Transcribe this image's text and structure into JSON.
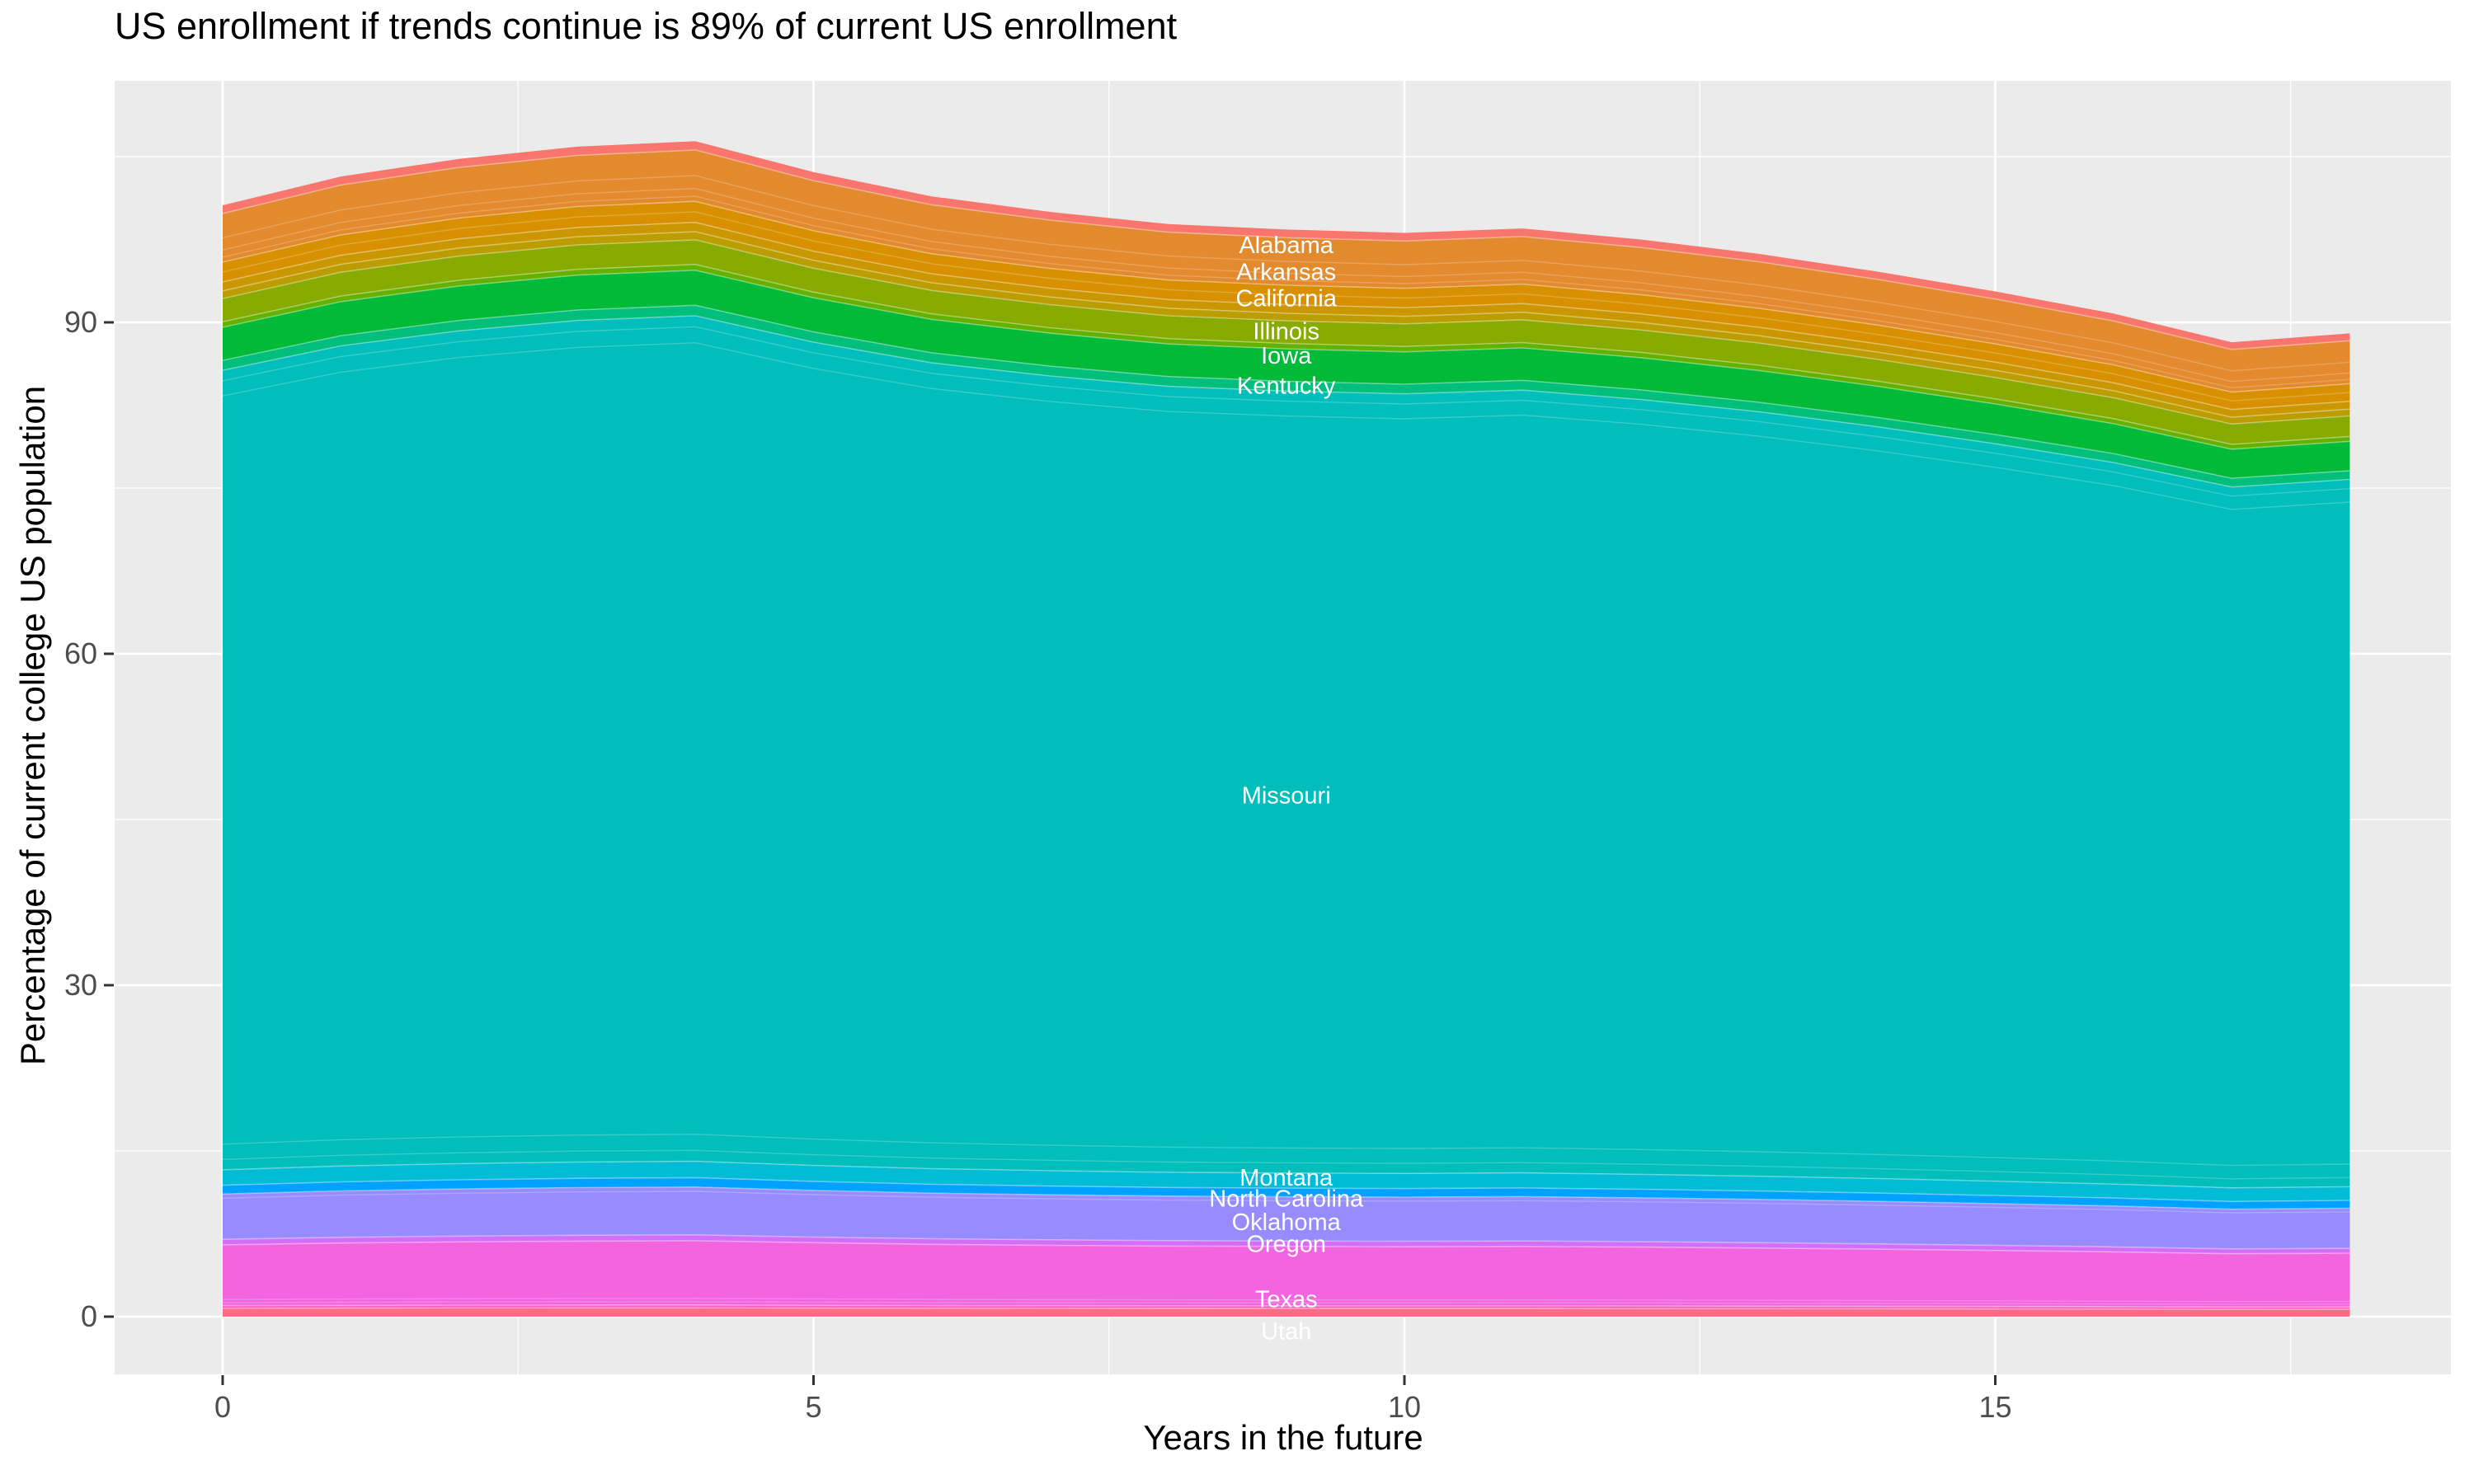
{
  "title": "US enrollment if trends continue is 89% of current US enrollment",
  "chart_data": {
    "type": "area",
    "stacked": true,
    "title": "US enrollment if trends continue is 89% of current US enrollment",
    "xlabel": "Years in the future",
    "ylabel": "Percentage of current college US population",
    "x": [
      0,
      1,
      2,
      3,
      4,
      5,
      6,
      7,
      8,
      9,
      10,
      11,
      12,
      13,
      14,
      15,
      16,
      17,
      18
    ],
    "totals": [
      100.6,
      103.2,
      104.8,
      105.9,
      106.4,
      103.6,
      101.4,
      100.0,
      98.9,
      98.4,
      98.1,
      98.5,
      97.5,
      96.2,
      94.6,
      92.8,
      90.8,
      88.2,
      89.0
    ],
    "series": [
      {
        "name": "Alabama",
        "color": "#F8766D",
        "width": 0.75
      },
      {
        "name": "",
        "color": "#E28A2D",
        "width": 4.4
      },
      {
        "name": "Arkansas",
        "color": "#D89000",
        "width": 1.8
      },
      {
        "name": "California",
        "color": "#CB9700",
        "width": 0.8
      },
      {
        "name": "",
        "color": "#BC9D00",
        "width": 0.7
      },
      {
        "name": "Illinois",
        "color": "#87AB00",
        "width": 2.1
      },
      {
        "name": "Iowa",
        "color": "#64B200",
        "width": 0.5
      },
      {
        "name": "Kentucky",
        "color": "#00BA38",
        "width": 3.0
      },
      {
        "name": "",
        "color": "#00BF7D",
        "width": 0.9
      },
      {
        "name": "Missouri",
        "color": "#00BEBB",
        "width": 72.4
      },
      {
        "name": "Montana",
        "color": "#00BCD4",
        "width": 1.4
      },
      {
        "name": "North Carolina",
        "color": "#00A2FF",
        "width": 0.8
      },
      {
        "name": "Oklahoma",
        "color": "#968CFF",
        "width": 4.1
      },
      {
        "name": "Oregon",
        "color": "#D36EF8",
        "width": 0.5
      },
      {
        "name": "Texas",
        "color": "#F365E0",
        "width": 5.5
      },
      {
        "name": "",
        "color": "#FF61C2",
        "width": 0.25
      },
      {
        "name": "Utah",
        "color": "#FC6C85",
        "width": 0.75
      }
    ],
    "labels": [
      {
        "text": "Alabama",
        "x": 9,
        "y": 97.0
      },
      {
        "text": "Arkansas",
        "x": 9,
        "y": 94.6
      },
      {
        "text": "California",
        "x": 9,
        "y": 92.2
      },
      {
        "text": "Illinois",
        "x": 9,
        "y": 89.2
      },
      {
        "text": "Iowa",
        "x": 9,
        "y": 87.0
      },
      {
        "text": "Kentucky",
        "x": 9,
        "y": 84.3
      },
      {
        "text": "Missouri",
        "x": 9,
        "y": 47.2
      },
      {
        "text": "Montana",
        "x": 9,
        "y": 12.6
      },
      {
        "text": "North Carolina",
        "x": 9,
        "y": 10.7
      },
      {
        "text": "Oklahoma",
        "x": 9,
        "y": 8.6
      },
      {
        "text": "Oregon",
        "x": 9,
        "y": 6.6
      },
      {
        "text": "Texas",
        "x": 9,
        "y": 1.6
      },
      {
        "text": "Utah",
        "x": 9,
        "y": -1.3
      }
    ],
    "x_ticks": [
      0,
      5,
      10,
      15
    ],
    "x_minor_ticks": [
      2.5,
      7.5,
      12.5,
      17.5
    ],
    "y_ticks": [
      0,
      30,
      60,
      90
    ],
    "y_minor_ticks": [
      15,
      45,
      75,
      105
    ],
    "xlim": [
      0,
      18
    ],
    "ylim": [
      0,
      111
    ],
    "grid": true,
    "legend": "none",
    "panel_bg": "#EBEBEB",
    "grid_color": "#FFFFFF",
    "tick_mark_color": "#333333",
    "tick_text_color": "#4D4D4D",
    "band_label_color": "#FFFFFF"
  }
}
